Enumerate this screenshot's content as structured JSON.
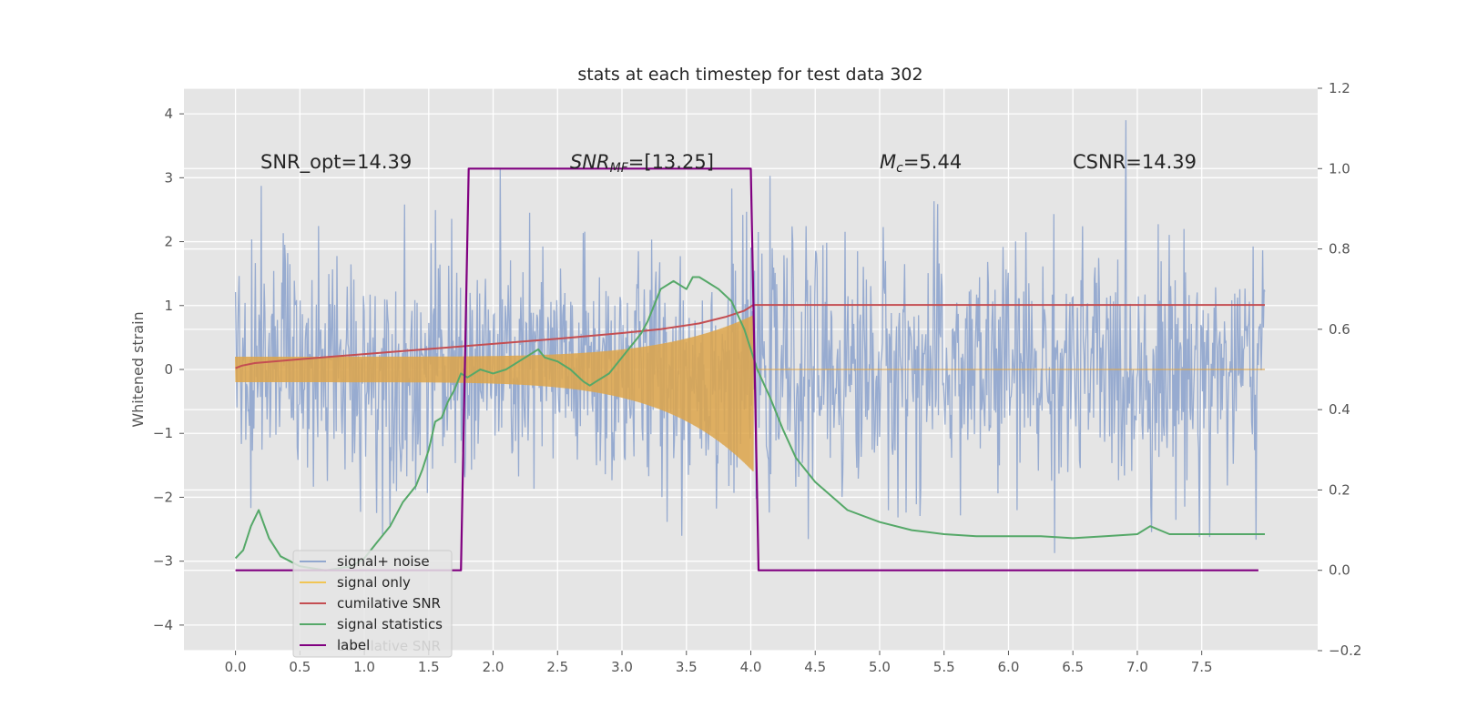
{
  "chart_data": {
    "type": "line",
    "title": "stats at each timestep for test data 302",
    "ylabel": "Whitened strain",
    "xlabel": "",
    "xlim": [
      -0.4,
      8.4
    ],
    "ylim": [
      -4.4,
      4.4
    ],
    "y2lim": [
      -0.2,
      1.2
    ],
    "x_ticks": [
      0.0,
      0.5,
      1.0,
      1.5,
      2.0,
      2.5,
      3.0,
      3.5,
      4.0,
      4.5,
      5.0,
      5.5,
      6.0,
      6.5,
      7.0,
      7.5
    ],
    "x_tick_labels": [
      "0.0",
      "0.5",
      "1.0",
      "1.5",
      "2.0",
      "2.5",
      "3.0",
      "3.5",
      "4.0",
      "4.5",
      "5.0",
      "5.5",
      "6.0",
      "6.5",
      "7.0",
      "7.5"
    ],
    "y_ticks": [
      -4,
      -3,
      -2,
      -1,
      0,
      1,
      2,
      3,
      4
    ],
    "y_tick_labels": [
      "−4",
      "−3",
      "−2",
      "−1",
      "0",
      "1",
      "2",
      "3",
      "4"
    ],
    "y2_ticks": [
      -0.2,
      0.0,
      0.2,
      0.4,
      0.6,
      0.8,
      1.0,
      1.2
    ],
    "y2_tick_labels": [
      "−0.2",
      "0.0",
      "0.2",
      "0.4",
      "0.6",
      "0.8",
      "1.0",
      "1.2"
    ],
    "grid": true,
    "legend_position": "lower-left",
    "annotations": {
      "snr_opt": "SNR_opt=14.39",
      "snr_mf_main": "SNR",
      "snr_mf_sub": "MF",
      "snr_mf_value": "=[13.25]",
      "mc_main": "M",
      "mc_sub": "c",
      "mc_value": "=5.44",
      "csnr": "CSNR=14.39"
    },
    "series": [
      {
        "name": "signal+ noise",
        "axis": "left",
        "color": "#92a8cf",
        "noise": {
          "t_start": 0.0,
          "t_end": 7.99,
          "amplitude_sigma": 1.0,
          "peak_max": 3.9,
          "peak_min": -3.85
        }
      },
      {
        "name": "signal only",
        "axis": "left",
        "color": "#dda54a",
        "chirp": {
          "t_start": 0.0,
          "t_merge": 4.02,
          "t_end": 7.99,
          "amp_start": 0.2,
          "amp_peak_pos": 0.85,
          "amp_peak_neg": -1.6
        }
      },
      {
        "name": "cumilative SNR",
        "axis": "left",
        "color": "#c44e52",
        "x": [
          0.0,
          0.05,
          0.15,
          0.5,
          1.0,
          1.5,
          2.0,
          2.5,
          3.0,
          3.3,
          3.6,
          3.8,
          3.95,
          4.02,
          4.05,
          7.99
        ],
        "y": [
          0.02,
          0.06,
          0.1,
          0.16,
          0.24,
          0.32,
          0.4,
          0.48,
          0.57,
          0.63,
          0.72,
          0.82,
          0.92,
          1.01,
          1.01,
          1.01
        ]
      },
      {
        "name": "signal statistics",
        "axis": "right",
        "color": "#55a868",
        "x": [
          0.0,
          0.06,
          0.12,
          0.18,
          0.26,
          0.35,
          0.5,
          0.7,
          0.9,
          1.0,
          1.1,
          1.2,
          1.3,
          1.4,
          1.45,
          1.5,
          1.55,
          1.6,
          1.65,
          1.7,
          1.75,
          1.8,
          1.9,
          2.0,
          2.1,
          2.2,
          2.3,
          2.35,
          2.4,
          2.5,
          2.6,
          2.7,
          2.75,
          2.8,
          2.9,
          3.0,
          3.05,
          3.1,
          3.15,
          3.2,
          3.25,
          3.3,
          3.4,
          3.5,
          3.55,
          3.6,
          3.65,
          3.75,
          3.85,
          3.95,
          4.05,
          4.15,
          4.25,
          4.35,
          4.5,
          4.75,
          5.0,
          5.25,
          5.5,
          5.75,
          6.0,
          6.25,
          6.5,
          6.75,
          7.0,
          7.1,
          7.25,
          7.5,
          7.75,
          7.99
        ],
        "y": [
          0.03,
          0.05,
          0.11,
          0.15,
          0.08,
          0.035,
          0.01,
          0.0,
          0.01,
          0.03,
          0.07,
          0.11,
          0.17,
          0.21,
          0.25,
          0.3,
          0.37,
          0.38,
          0.42,
          0.45,
          0.49,
          0.48,
          0.5,
          0.49,
          0.5,
          0.52,
          0.54,
          0.55,
          0.53,
          0.52,
          0.5,
          0.47,
          0.46,
          0.47,
          0.49,
          0.53,
          0.55,
          0.57,
          0.59,
          0.62,
          0.66,
          0.7,
          0.72,
          0.7,
          0.73,
          0.73,
          0.72,
          0.7,
          0.67,
          0.6,
          0.5,
          0.43,
          0.35,
          0.28,
          0.22,
          0.15,
          0.12,
          0.1,
          0.09,
          0.085,
          0.085,
          0.085,
          0.08,
          0.085,
          0.09,
          0.11,
          0.09,
          0.09,
          0.09,
          0.09
        ]
      },
      {
        "name": "label",
        "axis": "right",
        "color": "#800080",
        "x": [
          0.0,
          1.75,
          1.81,
          4.0,
          4.06,
          7.94
        ],
        "y": [
          0.0,
          0.0,
          1.0,
          1.0,
          0.0,
          0.0
        ]
      }
    ],
    "legend_entries": [
      "signal+ noise",
      "signal only",
      "cumilative SNR",
      "signal statistics",
      "label"
    ],
    "legend_hidden_text": "cumilative SNR"
  }
}
